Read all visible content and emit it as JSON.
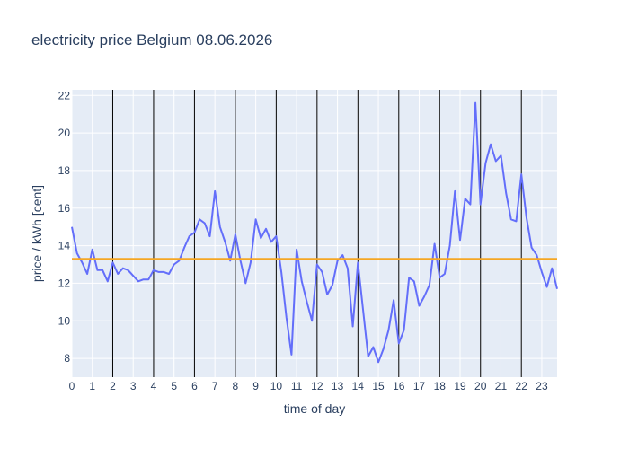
{
  "chart_data": {
    "type": "line",
    "title": "electricity price Belgium 08.06.2026",
    "xlabel": "time of day",
    "ylabel": "price / kWh [cent]",
    "xlim": [
      0,
      23.75
    ],
    "ylim": [
      7,
      22.3
    ],
    "x_ticks": [
      0,
      1,
      2,
      3,
      4,
      5,
      6,
      7,
      8,
      9,
      10,
      11,
      12,
      13,
      14,
      15,
      16,
      17,
      18,
      19,
      20,
      21,
      22,
      23
    ],
    "y_ticks": [
      8,
      10,
      12,
      14,
      16,
      18,
      20,
      22
    ],
    "vertical_lines": [
      2,
      4,
      6,
      8,
      10,
      12,
      14,
      16,
      18,
      20,
      22
    ],
    "average_line": 13.3,
    "colors": {
      "series": "#636efa",
      "average": "#f5a623",
      "plot_bg": "#e5ecf6",
      "vline": "#000000"
    },
    "series": [
      {
        "x": [
          0,
          0.25,
          0.5,
          0.75,
          1,
          1.25,
          1.5,
          1.75,
          2,
          2.25,
          2.5,
          2.75,
          3,
          3.25,
          3.5,
          3.75,
          4,
          4.25,
          4.5,
          4.75,
          5,
          5.25,
          5.5,
          5.75,
          6,
          6.25,
          6.5,
          6.75,
          7,
          7.25,
          7.5,
          7.75,
          8,
          8.25,
          8.5,
          8.75,
          9,
          9.25,
          9.5,
          9.75,
          10,
          10.25,
          10.5,
          10.75,
          11,
          11.25,
          11.5,
          11.75,
          12,
          12.25,
          12.5,
          12.75,
          13,
          13.25,
          13.5,
          13.75,
          14,
          14.25,
          14.5,
          14.75,
          15,
          15.25,
          15.5,
          15.75,
          16,
          16.25,
          16.5,
          16.75,
          17,
          17.25,
          17.5,
          17.75,
          18,
          18.25,
          18.5,
          18.75,
          19,
          19.25,
          19.5,
          19.75,
          20,
          20.25,
          20.5,
          20.75,
          21,
          21.25,
          21.5,
          21.75,
          22,
          22.25,
          22.5,
          22.75,
          23,
          23.25,
          23.5,
          23.75
        ],
        "values": [
          15.0,
          13.6,
          13.1,
          12.5,
          13.8,
          12.7,
          12.7,
          12.1,
          13.1,
          12.5,
          12.8,
          12.7,
          12.4,
          12.1,
          12.2,
          12.2,
          12.7,
          12.6,
          12.6,
          12.5,
          13.0,
          13.2,
          13.9,
          14.5,
          14.7,
          15.4,
          15.2,
          14.5,
          16.9,
          15.0,
          14.2,
          13.2,
          14.6,
          13.2,
          12.0,
          13.1,
          15.4,
          14.4,
          14.9,
          14.2,
          14.5,
          12.6,
          10.2,
          8.2,
          13.8,
          12.1,
          11.0,
          10.0,
          13.0,
          12.6,
          11.4,
          11.9,
          13.2,
          13.5,
          12.8,
          9.7,
          13.1,
          10.6,
          8.1,
          8.6,
          7.8,
          8.5,
          9.5,
          11.1,
          8.8,
          9.5,
          12.3,
          12.1,
          10.8,
          11.3,
          11.9,
          14.1,
          12.3,
          12.5,
          14.0,
          16.9,
          14.3,
          16.5,
          16.2,
          21.6,
          16.2,
          18.4,
          19.4,
          18.5,
          18.8,
          16.8,
          15.4,
          15.3,
          17.8,
          15.5,
          13.9,
          13.5,
          12.6,
          11.8,
          12.8,
          11.7
        ]
      }
    ]
  }
}
